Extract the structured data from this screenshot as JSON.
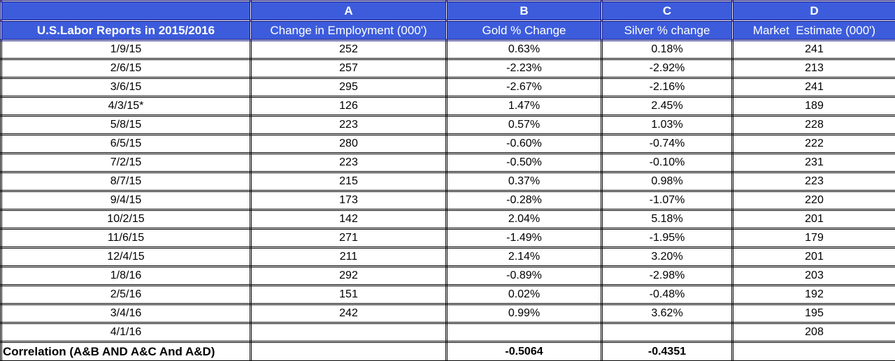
{
  "table": {
    "header_letters": [
      "",
      "A",
      "B",
      "C",
      "D"
    ],
    "header_labels": [
      "U.S.Labor Reports in 2015/2016",
      "Change in Employment (000')",
      "Gold % Change",
      "Silver % change",
      "Market  Estimate (000')"
    ],
    "rows": [
      [
        "1/9/15",
        "252",
        "0.63%",
        "0.18%",
        "241"
      ],
      [
        "2/6/15",
        "257",
        "-2.23%",
        "-2.92%",
        "213"
      ],
      [
        "3/6/15",
        "295",
        "-2.67%",
        "-2.16%",
        "241"
      ],
      [
        "4/3/15*",
        "126",
        "1.47%",
        "2.45%",
        "189"
      ],
      [
        "5/8/15",
        "223",
        "0.57%",
        "1.03%",
        "228"
      ],
      [
        "6/5/15",
        "280",
        "-0.60%",
        "-0.74%",
        "222"
      ],
      [
        "7/2/15",
        "223",
        "-0.50%",
        "-0.10%",
        "231"
      ],
      [
        "8/7/15",
        "215",
        "0.37%",
        "0.98%",
        "223"
      ],
      [
        "9/4/15",
        "173",
        "-0.28%",
        "-1.07%",
        "220"
      ],
      [
        "10/2/15",
        "142",
        "2.04%",
        "5.18%",
        "201"
      ],
      [
        "11/6/15",
        "271",
        "-1.49%",
        "-1.95%",
        "179"
      ],
      [
        "12/4/15",
        "211",
        "2.14%",
        "3.20%",
        "201"
      ],
      [
        "1/8/16",
        "292",
        "-0.89%",
        "-2.98%",
        "203"
      ],
      [
        "2/5/16",
        "151",
        "0.02%",
        "-0.48%",
        "192"
      ],
      [
        "3/4/16",
        "242",
        "0.99%",
        "3.62%",
        "195"
      ],
      [
        "4/1/16",
        "",
        "",
        "",
        "208"
      ]
    ],
    "correlation_row": [
      "Correlation (A&B AND A&C And A&D)",
      "",
      "-0.5064",
      "-0.4351",
      ""
    ]
  },
  "colors": {
    "header_bg": "#3d5cdc",
    "header_border": "#14147a",
    "header_text": "#ffffff",
    "cell_border": "#000000",
    "cell_text": "#000000",
    "cell_bg": "#ffffff"
  },
  "chart_data": {
    "type": "table",
    "title": "U.S.Labor Reports in 2015/2016",
    "columns": [
      "U.S.Labor Reports in 2015/2016 (report date)",
      "A: Change in Employment (000')",
      "B: Gold % Change",
      "C: Silver % change",
      "D: Market Estimate (000')"
    ],
    "rows": [
      [
        "1/9/15",
        252,
        0.63,
        0.18,
        241
      ],
      [
        "2/6/15",
        257,
        -2.23,
        -2.92,
        213
      ],
      [
        "3/6/15",
        295,
        -2.67,
        -2.16,
        241
      ],
      [
        "4/3/15*",
        126,
        1.47,
        2.45,
        189
      ],
      [
        "5/8/15",
        223,
        0.57,
        1.03,
        228
      ],
      [
        "6/5/15",
        280,
        -0.6,
        -0.74,
        222
      ],
      [
        "7/2/15",
        223,
        -0.5,
        -0.1,
        231
      ],
      [
        "8/7/15",
        215,
        0.37,
        0.98,
        223
      ],
      [
        "9/4/15",
        173,
        -0.28,
        -1.07,
        220
      ],
      [
        "10/2/15",
        142,
        2.04,
        5.18,
        201
      ],
      [
        "11/6/15",
        271,
        -1.49,
        -1.95,
        179
      ],
      [
        "12/4/15",
        211,
        2.14,
        3.2,
        201
      ],
      [
        "1/8/16",
        292,
        -0.89,
        -2.98,
        203
      ],
      [
        "2/5/16",
        151,
        0.02,
        -0.48,
        192
      ],
      [
        "3/4/16",
        242,
        0.99,
        3.62,
        195
      ],
      [
        "4/1/16",
        null,
        null,
        null,
        208
      ]
    ],
    "correlations": {
      "A_and_B": -0.5064,
      "A_and_C": -0.4351
    }
  }
}
